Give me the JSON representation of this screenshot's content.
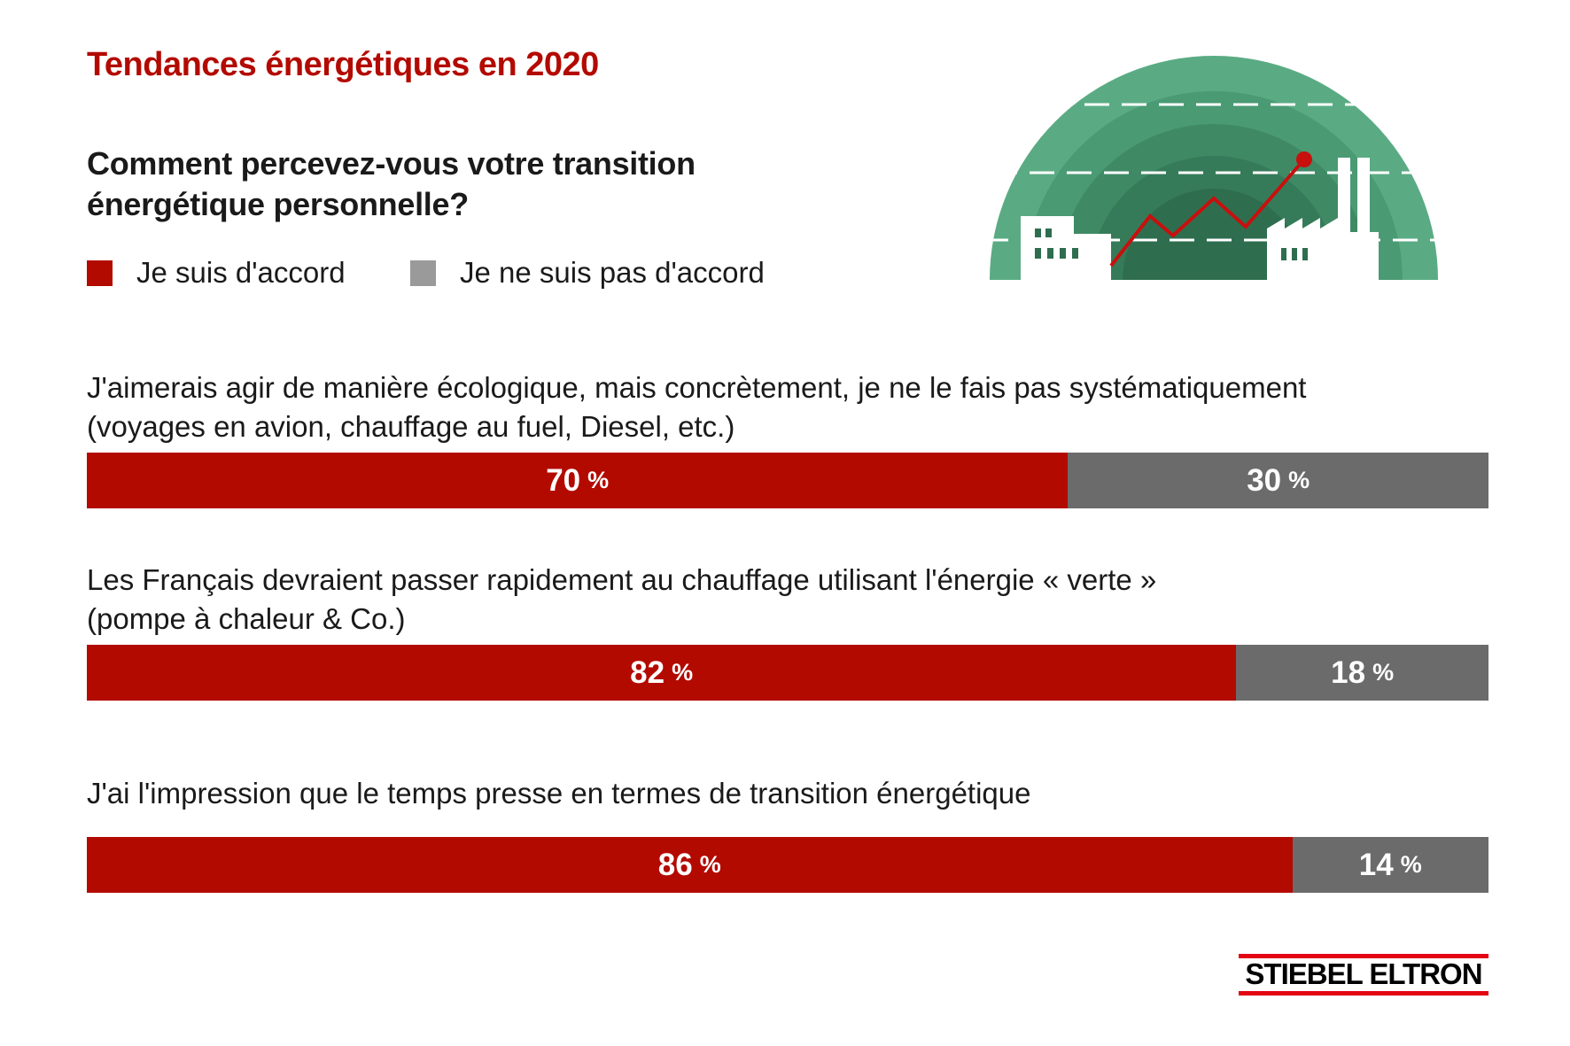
{
  "header": {
    "title": "Tendances énergétiques en 2020",
    "question_line1": "Comment percevez-vous votre transition",
    "question_line2": "énergétique personnelle?"
  },
  "legend": {
    "agree": "Je suis d'accord",
    "disagree": "Je ne suis pas d'accord"
  },
  "statements": [
    {
      "line1": "J'aimerais agir de manière écologique, mais concrètement, je ne le fais pas systématiquement",
      "line2": "(voyages en avion, chauffage au fuel, Diesel, etc.)"
    },
    {
      "line1": "Les Français devraient passer rapidement au chauffage utilisant l'énergie « verte »",
      "line2": "(pompe à chaleur & Co.)"
    },
    {
      "line1": "J'ai l'impression que le temps presse en termes de transition énergétique",
      "line2": ""
    }
  ],
  "bars": [
    {
      "agree_value": "70",
      "disagree_value": "30"
    },
    {
      "agree_value": "82",
      "disagree_value": "18"
    },
    {
      "agree_value": "86",
      "disagree_value": "14"
    }
  ],
  "pct_symbol": "%",
  "colors": {
    "agree": "#b30a00",
    "disagree": "#6b6b6b",
    "legend_disagree": "#9a9a9a",
    "title": "#b30a00",
    "illustration_outer": "#5aab83",
    "illustration_inner": "#2e6e4f"
  },
  "logo": {
    "text": "STIEBEL ELTRON"
  },
  "chart_data": {
    "type": "bar",
    "orientation": "horizontal-stacked-100",
    "title": "Tendances énergétiques en 2020",
    "subtitle": "Comment percevez-vous votre transition énergétique personnelle?",
    "categories": [
      "J'aimerais agir de manière écologique, mais concrètement, je ne le fais pas systématiquement (voyages en avion, chauffage au fuel, Diesel, etc.)",
      "Les Français devraient passer rapidement au chauffage utilisant l'énergie « verte » (pompe à chaleur & Co.)",
      "J'ai l'impression que le temps presse en termes de transition énergétique"
    ],
    "series": [
      {
        "name": "Je suis d'accord",
        "values": [
          70,
          82,
          86
        ],
        "color": "#b30a00"
      },
      {
        "name": "Je ne suis pas d'accord",
        "values": [
          30,
          18,
          14
        ],
        "color": "#6b6b6b"
      }
    ],
    "unit": "%",
    "xlim": [
      0,
      100
    ],
    "legend_placement": "top-left",
    "grid": false
  }
}
